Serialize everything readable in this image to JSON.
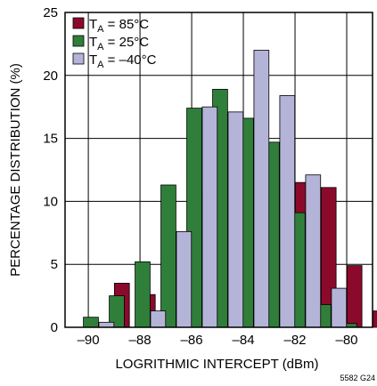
{
  "chart_data": {
    "type": "bar",
    "title": "",
    "xlabel": "LOGRITHMIC INTERCEPT (dBm)",
    "ylabel": "PERCENTAGE DISTRIBUTION (%)",
    "xlim": [
      -90.9,
      -79.0
    ],
    "ylim": [
      0,
      25
    ],
    "xticks": [
      -90,
      -88,
      -86,
      -84,
      -82,
      -80
    ],
    "xtick_labels": [
      "–90",
      "–88",
      "–86",
      "–84",
      "–82",
      "–80"
    ],
    "yticks": [
      0,
      5,
      10,
      15,
      20,
      25
    ],
    "ytick_labels": [
      "0",
      "5",
      "10",
      "15",
      "20",
      "25"
    ],
    "grid": true,
    "legend_position": "top-left",
    "bin_width": 1,
    "series": [
      {
        "name": "T = 85°C",
        "name_parts": {
          "main": "T",
          "sub": "A",
          "rest": " = 85°C"
        },
        "color": "#8b0a2c",
        "x": [
          -88.7,
          -87.7,
          -86.7,
          -85.7,
          -84.7,
          -83.7,
          -82.7,
          -81.7,
          -80.7,
          -79.7,
          -78.7
        ],
        "values": [
          3.5,
          2.6,
          7.5,
          11.1,
          15.1,
          15.5,
          14.6,
          11.5,
          11.1,
          4.9,
          1.3
        ]
      },
      {
        "name": "T = 25°C",
        "name_parts": {
          "main": "T",
          "sub": "A",
          "rest": " = 25°C"
        },
        "color": "#2f7f3a",
        "x": [
          -89.9,
          -88.9,
          -87.9,
          -86.9,
          -85.9,
          -84.9,
          -83.9,
          -82.9,
          -81.9,
          -80.9,
          -79.9
        ],
        "values": [
          0.8,
          2.5,
          5.2,
          11.3,
          17.4,
          18.9,
          16.6,
          14.7,
          9.1,
          1.8,
          0.3
        ]
      },
      {
        "name": "T = –40°C",
        "name_parts": {
          "main": "T",
          "sub": "A",
          "rest": " = –40°C"
        },
        "color": "#b4b4d8",
        "x": [
          -89.3,
          -87.3,
          -86.3,
          -85.3,
          -84.3,
          -83.3,
          -82.3,
          -81.3,
          -80.3
        ],
        "values": [
          0.4,
          1.3,
          7.6,
          17.5,
          17.1,
          22.0,
          18.4,
          12.1,
          3.1
        ]
      }
    ],
    "footnote": "5582 G24"
  }
}
